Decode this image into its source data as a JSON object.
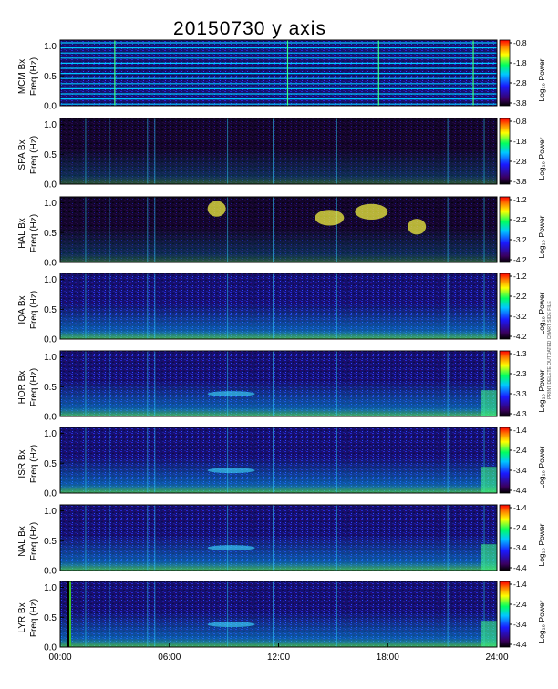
{
  "figure": {
    "title": "20150730 y axis",
    "freq_label": "Freq (Hz)",
    "colorbar_label": "Log₁₀ Power",
    "side_note": "PRINT DELETE OUTDATED CHART SIDE FILE"
  },
  "chart_data": {
    "type": "heatmap",
    "title": "20150730 y axis",
    "x_ticks": [
      "00:00",
      "06:00",
      "12:00",
      "18:00",
      "24:00"
    ],
    "x_range_hours": [
      0,
      24
    ],
    "y_ticks": [
      "0.0",
      "0.5",
      "1.0"
    ],
    "y_range_hz": [
      0,
      1.1
    ],
    "colormap": [
      "#000000",
      "#3a0060",
      "#1a1aff",
      "#00c8ff",
      "#00ff60",
      "#ffff00",
      "#ff8000",
      "#ff0000"
    ],
    "panels": [
      {
        "station": "MCM Bx",
        "colorbar_ticks": [
          "-0.8",
          "-1.8",
          "-2.8",
          "-3.8"
        ]
      },
      {
        "station": "SPA Bx",
        "colorbar_ticks": [
          "-0.8",
          "-1.8",
          "-2.8",
          "-3.8"
        ]
      },
      {
        "station": "HAL Bx",
        "colorbar_ticks": [
          "-1.2",
          "-2.2",
          "-3.2",
          "-4.2"
        ]
      },
      {
        "station": "IQA Bx",
        "colorbar_ticks": [
          "-1.2",
          "-2.2",
          "-3.2",
          "-4.2"
        ]
      },
      {
        "station": "HOR Bx",
        "colorbar_ticks": [
          "-1.3",
          "-2.3",
          "-3.3",
          "-4.3"
        ]
      },
      {
        "station": "ISR Bx",
        "colorbar_ticks": [
          "-1.4",
          "-2.4",
          "-3.4",
          "-4.4"
        ]
      },
      {
        "station": "NAL Bx",
        "colorbar_ticks": [
          "-1.4",
          "-2.4",
          "-3.4",
          "-4.4"
        ]
      },
      {
        "station": "LYR Bx",
        "colorbar_ticks": [
          "-1.4",
          "-2.4",
          "-3.4",
          "-4.4"
        ]
      }
    ]
  }
}
